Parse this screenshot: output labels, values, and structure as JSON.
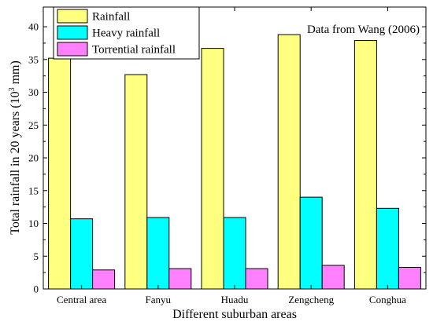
{
  "chart_data": {
    "type": "bar",
    "categories": [
      "Central area",
      "Fanyu",
      "Huadu",
      "Zengcheng",
      "Conghua"
    ],
    "series": [
      {
        "name": "Rainfall",
        "color": "#ffff80",
        "values": [
          35.2,
          32.7,
          36.7,
          38.8,
          37.9
        ]
      },
      {
        "name": "Heavy rainfall",
        "color": "#00ffff",
        "values": [
          10.7,
          10.9,
          10.9,
          14.0,
          12.3
        ]
      },
      {
        "name": "Torrential rainfall",
        "color": "#ff80ff",
        "values": [
          2.9,
          3.1,
          3.1,
          3.6,
          3.3
        ]
      }
    ],
    "xlabel": "Different suburban areas",
    "ylabel_main": "Total rainfall in 20 years (10",
    "ylabel_sup": "3",
    "ylabel_end": " mm)",
    "ylim": [
      0,
      43
    ],
    "yticks": [
      0,
      5,
      10,
      15,
      20,
      25,
      30,
      35,
      40
    ],
    "annotation": "Data from Wang (2006)",
    "legend_position": "top-left",
    "grid": false
  }
}
